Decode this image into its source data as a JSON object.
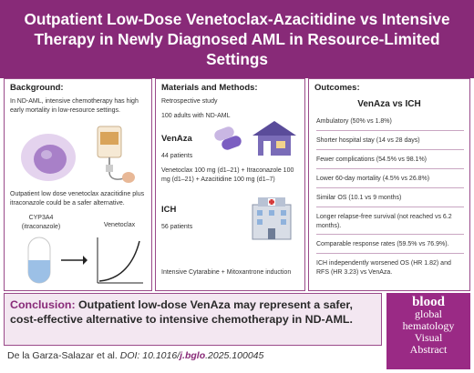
{
  "title": "Outpatient Low-Dose Venetoclax-Azacitidine vs Intensive Therapy in Newly Diagnosed AML in Resource-Limited Settings",
  "background": {
    "heading": "Background:",
    "text1": "In ND-AML, intensive chemotherapy has high early mortality in low-resource settings.",
    "text2": "Outpatient low dose venetoclax azacitidine plus itraconazole could be a safer alternative.",
    "cyp_label": "CYP3A4",
    "cyp_sub": "(itraconazole)",
    "ven_label": "Venetoclax"
  },
  "methods": {
    "heading": "Materials and Methods:",
    "study": "Retrospective study",
    "adults": "100 adults with ND-AML",
    "venaza_heading": "VenAza",
    "venaza_patients": "44 patients",
    "venaza_regimen": "Venetoclax 100 mg (d1–21) + Itraconazole 100 mg (d1–21) + Azacitidine 100 mg (d1–7)",
    "ich_heading": "ICH",
    "ich_patients": "56 patients",
    "ich_regimen": "Intensive Cytarabine + Mitoxantrone induction"
  },
  "outcomes": {
    "heading": "Outcomes:",
    "compare": "VenAza vs ICH",
    "items": [
      "Ambulatory (50% vs 1.8%)",
      "Shorter hospital stay (14 vs 28 days)",
      "Fewer complications (54.5% vs 98.1%)",
      "Lower 60-day mortality (4.5% vs 26.8%)",
      "Similar OS (10.1 vs 9 months)",
      "Longer relapse-free survival (not reached vs 6.2 months).",
      "Comparable response rates (59.5% vs 76.9%).",
      "ICH independently worsened OS (HR 1.82) and RFS (HR 3.23) vs VenAza."
    ]
  },
  "conclusion": {
    "label": "Conclusion:",
    "text": "Outpatient low-dose VenAza may represent a safer, cost-effective alternative to intensive chemotherapy in ND-AML."
  },
  "citation": {
    "author": "De la Garza-Salazar et al.",
    "doi_prefix": "DOI: 10.1016/",
    "doi_highlight": "j.bglo",
    "doi_suffix": ".2025.100045"
  },
  "logo": {
    "line1": "blood",
    "line2": "global",
    "line3": "hematology",
    "line4": "Visual",
    "line5": "Abstract"
  },
  "colors": {
    "brand": "#882a78",
    "panel_bg": "#f3e7f1",
    "logo_bg": "#9a2a85"
  }
}
